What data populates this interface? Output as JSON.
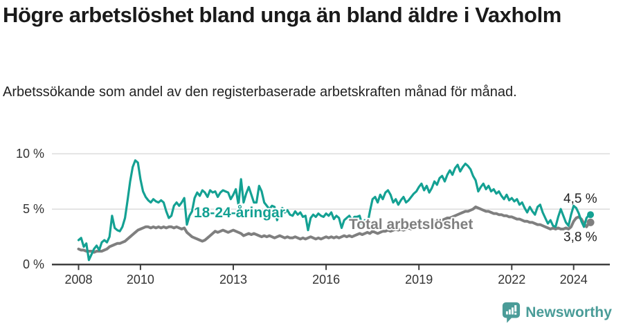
{
  "header": {
    "title": "Högre arbetslöshet bland unga än bland äldre i Vaxholm",
    "subtitle": "Arbetssökande som andel av den registerbaserade arbetskraften månad för månad."
  },
  "footer": {
    "brand": "Newsworthy",
    "logo_icon": "newsworthy-speech-bubble-bar-chart-icon"
  },
  "colors": {
    "young_series": "#14a193",
    "total_series": "#7f7f7f",
    "axis": "#3f3f3f",
    "tick_text": "#333333",
    "grid": "#dcdcdc",
    "value_label": "#222222",
    "brand": "#4a9c98",
    "background": "#ffffff"
  },
  "chart_data": {
    "type": "line",
    "title": "Högre arbetslöshet bland unga än bland äldre i Vaxholm",
    "subtitle": "Arbetssökande som andel av den registerbaserade arbetskraften månad för månad.",
    "unit": "%",
    "x_start": "2008-01",
    "x_end": "2024-07",
    "x_interval": "month",
    "x_ticks": [
      2008,
      2010,
      2013,
      2016,
      2019,
      2022,
      2024
    ],
    "ylim": [
      0,
      10
    ],
    "y_ticks": [
      {
        "value": 0,
        "label": "0 %"
      },
      {
        "value": 5,
        "label": "5 %"
      },
      {
        "value": 10,
        "label": "10 %"
      }
    ],
    "grid": "horizontal-only",
    "legend_position": "inline-labels-on-lines",
    "series": [
      {
        "name": "18-24-åringar",
        "color": "#14a193",
        "end_value": 4.5,
        "end_label": "4,5 %",
        "values": [
          2.2,
          2.4,
          1.6,
          1.9,
          0.4,
          0.9,
          1.4,
          1.7,
          1.3,
          2.0,
          2.2,
          2.0,
          2.5,
          4.4,
          3.3,
          3.1,
          3.0,
          3.4,
          4.2,
          5.8,
          7.5,
          8.8,
          9.4,
          9.2,
          7.7,
          6.6,
          6.1,
          5.8,
          5.6,
          5.9,
          5.7,
          5.6,
          5.8,
          5.6,
          4.8,
          4.2,
          4.4,
          5.3,
          5.6,
          5.3,
          5.6,
          6.0,
          3.6,
          4.4,
          4.8,
          6.0,
          6.5,
          6.2,
          6.7,
          6.5,
          6.1,
          6.7,
          6.5,
          6.6,
          6.1,
          6.5,
          6.7,
          6.6,
          6.5,
          5.9,
          6.3,
          6.8,
          5.4,
          7.7,
          5.6,
          6.4,
          7.0,
          6.3,
          5.6,
          5.6,
          7.1,
          6.6,
          5.6,
          5.3,
          5.0,
          5.3,
          5.2,
          4.0,
          4.9,
          5.1,
          4.7,
          4.9,
          4.5,
          4.4,
          4.8,
          4.5,
          4.7,
          4.3,
          4.4,
          3.1,
          4.2,
          4.5,
          4.3,
          4.6,
          4.4,
          4.3,
          4.6,
          4.4,
          4.7,
          4.1,
          4.4,
          4.2,
          3.3,
          4.0,
          4.2,
          4.4,
          4.0,
          4.3,
          4.3,
          4.4,
          3.6,
          4.0,
          3.6,
          4.8,
          5.9,
          6.1,
          5.6,
          6.3,
          5.9,
          6.5,
          6.7,
          6.3,
          5.6,
          5.9,
          5.4,
          5.8,
          6.1,
          5.6,
          5.8,
          6.1,
          6.4,
          6.6,
          7.0,
          7.3,
          6.7,
          7.1,
          6.5,
          6.9,
          7.5,
          7.2,
          7.8,
          8.0,
          7.5,
          8.1,
          8.5,
          8.1,
          8.7,
          9.0,
          8.4,
          8.8,
          9.1,
          8.9,
          8.6,
          8.0,
          7.6,
          6.6,
          7.0,
          7.3,
          6.8,
          7.1,
          6.6,
          6.8,
          6.4,
          6.6,
          6.2,
          5.9,
          6.3,
          5.8,
          6.0,
          5.7,
          5.9,
          5.4,
          5.6,
          5.1,
          4.7,
          5.2,
          4.8,
          4.5,
          5.2,
          5.4,
          4.7,
          4.2,
          3.7,
          4.0,
          3.5,
          3.4,
          4.3,
          5.0,
          4.4,
          3.8,
          3.5,
          4.5,
          5.3,
          5.1,
          4.6,
          3.9,
          3.4,
          4.2,
          4.5
        ]
      },
      {
        "name": "Total arbetslöshet",
        "color": "#7f7f7f",
        "end_value": 3.8,
        "end_label": "3,8 %",
        "values": [
          1.4,
          1.3,
          1.3,
          1.2,
          1.2,
          1.2,
          1.1,
          1.2,
          1.2,
          1.2,
          1.3,
          1.4,
          1.6,
          1.7,
          1.8,
          1.9,
          1.9,
          2.0,
          2.1,
          2.3,
          2.5,
          2.7,
          2.9,
          3.1,
          3.2,
          3.3,
          3.4,
          3.4,
          3.3,
          3.4,
          3.3,
          3.4,
          3.3,
          3.4,
          3.3,
          3.4,
          3.4,
          3.3,
          3.4,
          3.3,
          3.2,
          3.3,
          2.9,
          2.7,
          2.5,
          2.4,
          2.3,
          2.2,
          2.1,
          2.2,
          2.4,
          2.6,
          2.8,
          3.0,
          2.9,
          3.0,
          3.1,
          3.0,
          2.9,
          3.0,
          3.1,
          3.0,
          2.9,
          2.8,
          2.6,
          2.7,
          2.8,
          2.7,
          2.8,
          2.7,
          2.6,
          2.5,
          2.6,
          2.5,
          2.6,
          2.5,
          2.4,
          2.5,
          2.6,
          2.5,
          2.4,
          2.5,
          2.4,
          2.4,
          2.5,
          2.4,
          2.3,
          2.4,
          2.3,
          2.4,
          2.5,
          2.4,
          2.3,
          2.4,
          2.3,
          2.4,
          2.5,
          2.4,
          2.5,
          2.4,
          2.5,
          2.4,
          2.5,
          2.6,
          2.5,
          2.6,
          2.5,
          2.6,
          2.7,
          2.8,
          2.7,
          2.8,
          2.9,
          2.8,
          3.0,
          2.9,
          2.8,
          2.9,
          3.0,
          3.0,
          3.1,
          3.0,
          3.1,
          3.2,
          3.1,
          3.2,
          3.1,
          3.2,
          3.3,
          3.2,
          3.3,
          3.4,
          3.4,
          3.5,
          3.5,
          3.6,
          3.7,
          3.8,
          3.9,
          3.9,
          4.0,
          4.0,
          4.1,
          4.2,
          4.2,
          4.3,
          4.4,
          4.5,
          4.6,
          4.7,
          4.8,
          4.8,
          4.9,
          5.0,
          5.2,
          5.1,
          5.0,
          4.9,
          4.8,
          4.8,
          4.7,
          4.6,
          4.6,
          4.5,
          4.5,
          4.4,
          4.4,
          4.3,
          4.3,
          4.2,
          4.1,
          4.1,
          4.0,
          3.9,
          3.9,
          3.8,
          3.8,
          3.7,
          3.6,
          3.6,
          3.5,
          3.4,
          3.3,
          3.2,
          3.3,
          3.2,
          3.3,
          3.2,
          3.2,
          3.3,
          3.2,
          3.4,
          3.9,
          4.2,
          4.3,
          4.1,
          3.7,
          3.4,
          3.8
        ]
      }
    ]
  }
}
